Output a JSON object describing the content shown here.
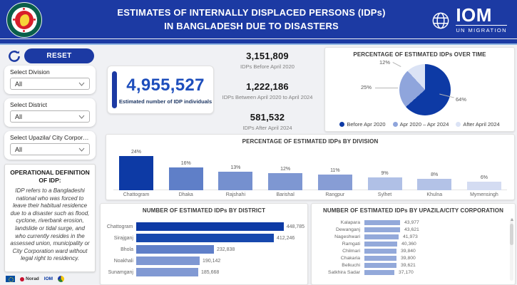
{
  "header": {
    "title_line1": "ESTIMATES OF INTERNALLY DISPLACED PERSONS (IDPs)",
    "title_line2": "IN BANGLADESH DUE TO DISASTERS",
    "iom": {
      "name": "IOM",
      "subtitle": "UN MIGRATION"
    }
  },
  "sidebar": {
    "reset_label": "RESET",
    "filters": [
      {
        "label": "Select Division",
        "value": "All"
      },
      {
        "label": "Select District",
        "value": "All"
      },
      {
        "label": "Select Upazila/ City Corpora...",
        "value": "All"
      }
    ],
    "definition": {
      "title_line1": "OPERATIONAL DEFINITION",
      "title_line2": "OF IDP:",
      "body": "IDP refers to a Bangladeshi national who was forced to leave their habitual residence due to a disaster such as flood, cyclone, riverbank erosion, landslide or tidal surge, and who currently resides in the assessed union, municipality or City Corporation ward without legal right to residency."
    },
    "footer_logos": {
      "norad": "Norad",
      "iom": "IOM"
    }
  },
  "kpi": {
    "value": "4,955,527",
    "label": "Estimated number of IDP individuals"
  },
  "stats": [
    {
      "value": "3,151,809",
      "label": "IDPs Before April 2020"
    },
    {
      "value": "1,222,186",
      "label": "IDPs Between April 2020 to April 2024"
    },
    {
      "value": "581,532",
      "label": "IDPs After April 2024"
    }
  ],
  "chart_data": [
    {
      "type": "pie",
      "title": "PERCENTAGE OF ESTIMATED IDPs OVER TIME",
      "labels": [
        "Before Apr 2020",
        "Apr 2020 – Apr 2024",
        "After April 2024"
      ],
      "values_pct": [
        64,
        25,
        12
      ],
      "colors": [
        "#0d3aa5",
        "#8fa5dc",
        "#dbe3f5"
      ],
      "legend_position": "bottom"
    },
    {
      "type": "bar",
      "title": "PERCENTAGE OF ESTIMATED IDPs BY DIVISION",
      "categories": [
        "Chattogram",
        "Dhaka",
        "Rajshahi",
        "Barishal",
        "Rangpur",
        "Sylhet",
        "Khulna",
        "Mymensingh"
      ],
      "values_pct": [
        24,
        16,
        13,
        12,
        11,
        9,
        8,
        6
      ],
      "bar_colors": [
        "#0d3aa5",
        "#5f7fc8",
        "#7590cf",
        "#7e97d2",
        "#879dd5",
        "#b0c0e6",
        "#b3c2e7",
        "#d4dcf2"
      ],
      "grid": false
    },
    {
      "type": "bar-horizontal",
      "title": "NUMBER OF ESTIMATED IDPs BY DISTRICT",
      "categories": [
        "Chattogram",
        "Sirajganj",
        "Bhola",
        "Noakhali",
        "Sunamganj"
      ],
      "values": [
        448785,
        412246,
        232838,
        190142,
        185668
      ],
      "value_labels": [
        "448,785",
        "412,246",
        "232,838",
        "190,142",
        "185,668"
      ],
      "bar_colors": [
        "#0d3aa5",
        "#1748ad",
        "#5f7fc8",
        "#7e97d2",
        "#8199d3"
      ]
    },
    {
      "type": "bar-horizontal",
      "title": "NUMBER OF ESTIMATED IDPs BY UPAZILA/CITY CORPORATION",
      "categories": [
        "Kalapara",
        "Dewanganj",
        "Nageshwari",
        "Ramgati",
        "Chilmari",
        "Chakaria",
        "Belkuchi",
        "Satkhira Sadar"
      ],
      "values": [
        43977,
        43621,
        41973,
        40360,
        39840,
        39800,
        39621,
        37170
      ],
      "value_labels": [
        "43,977",
        "43,621",
        "41,973",
        "40,360",
        "39,840",
        "39,800",
        "39,621",
        "37,170"
      ],
      "bar_colors": [
        "#93a9da"
      ]
    }
  ],
  "colors": {
    "header_bg": "#1c3aa3",
    "accent": "#0d3aa5",
    "kpi_number": "#1d4ebc",
    "strip_underline": "#8eb4e3",
    "page_bg": "#f0f1f4"
  }
}
